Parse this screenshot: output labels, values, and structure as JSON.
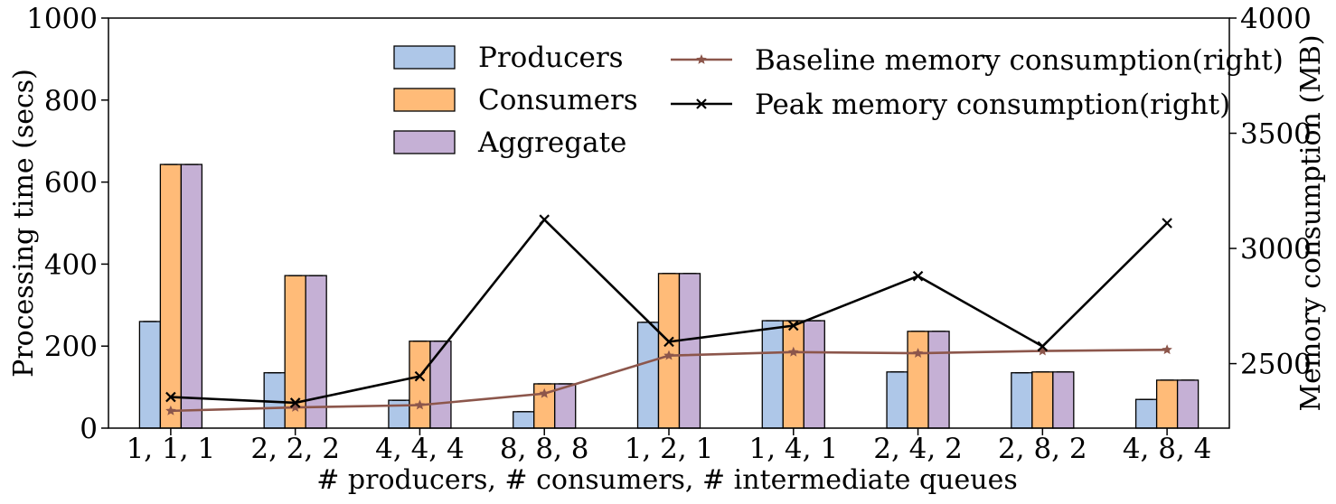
{
  "chart_data": {
    "type": "bar",
    "xlabel": "# producers, # consumers, # intermediate queues",
    "ylabel_left": "Processing time (secs)",
    "ylabel_right": "Memory consumption (MB)",
    "ylim_left": [
      0,
      1000
    ],
    "ylim_right": [
      2220,
      4000
    ],
    "yticks_left": [
      "0",
      "200",
      "400",
      "600",
      "800",
      "1000"
    ],
    "yticks_right": [
      "2500",
      "3000",
      "3500",
      "4000"
    ],
    "categories": [
      "1, 1, 1",
      "2, 2, 2",
      "4, 4, 4",
      "8, 8, 8",
      "1, 2, 1",
      "1, 4, 1",
      "2, 4, 2",
      "2, 8, 2",
      "4, 8, 4"
    ],
    "bar_series": [
      {
        "name": "Producers",
        "color": "#aec7e8",
        "values": [
          260,
          135,
          68,
          40,
          258,
          262,
          137,
          135,
          70
        ]
      },
      {
        "name": "Consumers",
        "color": "#ffbb78",
        "values": [
          643,
          372,
          212,
          108,
          377,
          262,
          236,
          137,
          117
        ]
      },
      {
        "name": "Aggregate",
        "color": "#c5b0d5",
        "values": [
          643,
          372,
          212,
          108,
          377,
          262,
          236,
          137,
          117
        ]
      }
    ],
    "line_series": [
      {
        "name": "Baseline memory consumption(right)",
        "color": "#8c564b",
        "marker": "star",
        "values": [
          2295,
          2310,
          2320,
          2370,
          2535,
          2550,
          2545,
          2555,
          2560
        ]
      },
      {
        "name": "Peak memory consumption(right)",
        "color": "#000000",
        "marker": "x",
        "values": [
          2355,
          2330,
          2445,
          3125,
          2595,
          2665,
          2880,
          2575,
          3110
        ]
      }
    ],
    "legend_position": "top-center"
  }
}
